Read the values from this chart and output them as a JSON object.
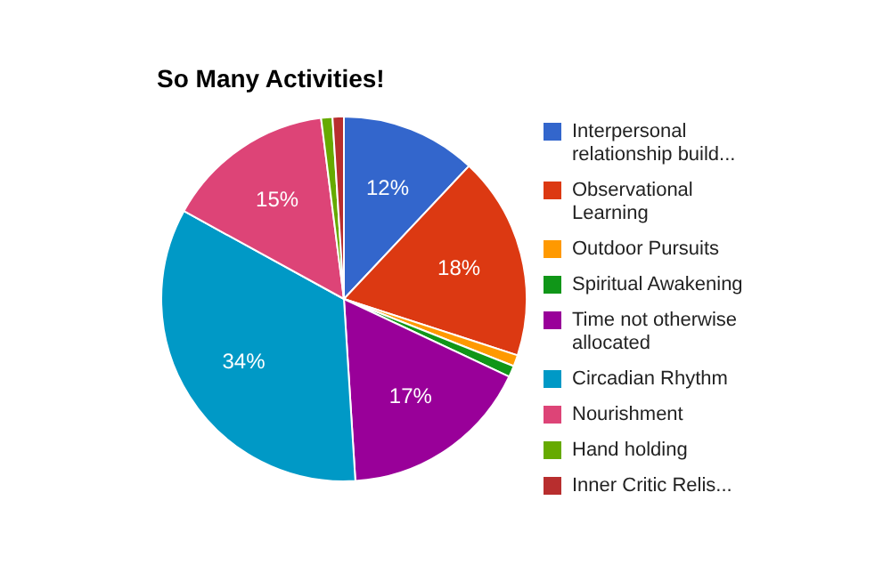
{
  "chart_data": {
    "type": "pie",
    "title": "So Many Activities!",
    "legend": "right",
    "categories": [
      "Interpersonal relationship build...",
      "Observational Learning",
      "Outdoor Pursuits",
      "Spiritual Awakening",
      "Time not otherwise allocated",
      "Circadian Rhythm",
      "Nourishment",
      "Hand holding",
      "Inner Critic Relis..."
    ],
    "values": [
      12,
      18,
      1,
      1,
      17,
      34,
      15,
      1,
      1
    ],
    "colors": [
      "#3366cc",
      "#dc3912",
      "#ff9900",
      "#109618",
      "#990099",
      "#0099c6",
      "#dd4477",
      "#66aa00",
      "#b82e2e"
    ],
    "value_labels": [
      "12%",
      "18%",
      null,
      null,
      "17%",
      "34%",
      "15%",
      null,
      null
    ]
  }
}
